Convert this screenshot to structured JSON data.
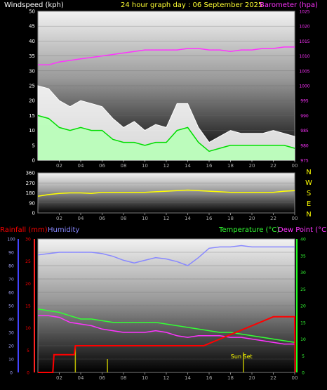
{
  "header": {
    "title": "24 hour graph day : 06 September 2025",
    "wind_label": "Windspeed (kph)",
    "baro_label": "Barometer (hpa)",
    "rain_label": "Rainfall (mm)",
    "humidity_label": "Humidity",
    "temp_label": "Temperature (°C)",
    "dew_label": "Dew Point (°C)",
    "sunset_label": "Sun Set"
  },
  "colors": {
    "wind_gust": "#ffffff",
    "wind_avg": "#b8ffb8",
    "wind_avg_line": "#00dd00",
    "barometer": "#ff33ff",
    "direction": "#ffff00",
    "rain": "#ff0000",
    "humidity": "#8888ff",
    "temperature": "#33ff33",
    "dewpoint": "#ff33ff",
    "solar": "#bbbb00",
    "bg": "#000000",
    "plot_top": "#f2f2f2",
    "plot_bottom": "#000000"
  },
  "chart_data": [
    {
      "id": "wind_baro",
      "type": "line",
      "x_ticks": [
        "02",
        "04",
        "06",
        "08",
        "10",
        "12",
        "14",
        "16",
        "18",
        "20",
        "22",
        "00"
      ],
      "y_left_ticks": [
        0,
        5,
        10,
        15,
        20,
        25,
        30,
        35,
        40,
        45,
        50
      ],
      "y_left_lim": [
        0,
        50
      ],
      "y_right_ticks": [
        975,
        980,
        985,
        990,
        995,
        1000,
        1005,
        1010,
        1015,
        1020,
        1025
      ],
      "y_right_lim": [
        975,
        1025
      ],
      "series": [
        {
          "key": "gust",
          "hours": [
            0,
            1,
            2,
            3,
            4,
            5,
            6,
            7,
            8,
            9,
            10,
            11,
            12,
            13,
            14,
            15,
            16,
            17,
            18,
            19,
            20,
            21,
            22,
            23,
            24
          ],
          "values": [
            25,
            24,
            20,
            18,
            20,
            19,
            18,
            14,
            11,
            13,
            10,
            12,
            11,
            19,
            19,
            11,
            6,
            8,
            10,
            9,
            9,
            9,
            10,
            9,
            8
          ]
        },
        {
          "key": "avg",
          "hours": [
            0,
            1,
            2,
            3,
            4,
            5,
            6,
            7,
            8,
            9,
            10,
            11,
            12,
            13,
            14,
            15,
            16,
            17,
            18,
            19,
            20,
            21,
            22,
            23,
            24
          ],
          "values": [
            15,
            14,
            11,
            10,
            11,
            10,
            10,
            7,
            6,
            6,
            5,
            6,
            6,
            10,
            11,
            6,
            3,
            4,
            5,
            5,
            5,
            5,
            5,
            5,
            4
          ]
        },
        {
          "key": "barometer",
          "hours": [
            0,
            1,
            2,
            3,
            4,
            5,
            6,
            7,
            8,
            9,
            10,
            11,
            12,
            13,
            14,
            15,
            16,
            17,
            18,
            19,
            20,
            21,
            22,
            23,
            24
          ],
          "values": [
            1007,
            1007,
            1008,
            1008.5,
            1009,
            1009.5,
            1010,
            1010.5,
            1011,
            1011.5,
            1012,
            1012,
            1012,
            1012,
            1012.5,
            1012.5,
            1012,
            1012,
            1011.5,
            1012,
            1012,
            1012.5,
            1012.5,
            1013,
            1013
          ]
        }
      ]
    },
    {
      "id": "direction",
      "type": "line",
      "x_ticks": [
        "02",
        "04",
        "06",
        "08",
        "10",
        "12",
        "14",
        "16",
        "18",
        "20",
        "22",
        "00"
      ],
      "y_ticks": [
        0,
        90,
        180,
        270,
        360
      ],
      "y_lim": [
        0,
        360
      ],
      "compass_labels": [
        "N",
        "W",
        "S",
        "E",
        "N"
      ],
      "series": [
        {
          "key": "direction",
          "hours": [
            0,
            1,
            2,
            3,
            4,
            5,
            6,
            7,
            8,
            9,
            10,
            11,
            12,
            13,
            14,
            15,
            16,
            17,
            18,
            19,
            20,
            21,
            22,
            23,
            24
          ],
          "values": [
            150,
            165,
            175,
            180,
            180,
            175,
            185,
            185,
            185,
            185,
            185,
            190,
            195,
            200,
            205,
            200,
            195,
            190,
            185,
            185,
            185,
            185,
            185,
            195,
            200
          ]
        }
      ]
    },
    {
      "id": "rain_temp",
      "type": "line",
      "x_ticks": [
        "02",
        "04",
        "06",
        "08",
        "10",
        "12",
        "14",
        "16",
        "18",
        "20",
        "22",
        "00"
      ],
      "humidity_ticks": [
        0,
        10,
        20,
        30,
        40,
        50,
        60,
        70,
        80,
        90,
        100
      ],
      "humidity_lim": [
        0,
        100
      ],
      "rain_ticks": [
        0,
        5,
        10,
        15,
        20,
        25,
        30
      ],
      "rain_lim": [
        0,
        30
      ],
      "temp_ticks": [
        0,
        5,
        10,
        15,
        20,
        25,
        30,
        35,
        40
      ],
      "temp_lim": [
        0,
        40
      ],
      "series": [
        {
          "key": "humidity",
          "hours": [
            0,
            1,
            2,
            3,
            4,
            5,
            6,
            7,
            8,
            9,
            10,
            11,
            12,
            13,
            14,
            15,
            16,
            17,
            18,
            19,
            20,
            21,
            22,
            23,
            24
          ],
          "values": [
            88,
            89,
            90,
            90,
            90,
            90,
            89,
            87,
            84,
            82,
            84,
            86,
            85,
            83,
            80,
            86,
            93,
            94,
            94,
            95,
            94,
            94,
            94,
            94,
            94
          ]
        },
        {
          "key": "temperature",
          "hours": [
            0,
            1,
            2,
            3,
            4,
            5,
            6,
            7,
            8,
            9,
            10,
            11,
            12,
            13,
            14,
            15,
            16,
            17,
            18,
            19,
            20,
            21,
            22,
            23,
            24
          ],
          "values": [
            19,
            18.5,
            18,
            17,
            16,
            16,
            15.5,
            15,
            15,
            15,
            15,
            15,
            14.5,
            14,
            13.5,
            13,
            12.5,
            12,
            12,
            11.5,
            11,
            10.5,
            10,
            9.5,
            9
          ]
        },
        {
          "key": "dewpoint",
          "hours": [
            0,
            1,
            2,
            3,
            4,
            5,
            6,
            7,
            8,
            9,
            10,
            11,
            12,
            13,
            14,
            15,
            16,
            17,
            18,
            19,
            20,
            21,
            22,
            23,
            24
          ],
          "values": [
            17,
            17,
            16.5,
            15,
            14.5,
            14,
            13,
            12.5,
            12,
            12,
            12,
            12.5,
            12,
            11,
            10.5,
            11,
            11,
            11,
            10.5,
            10.5,
            10,
            9.5,
            9,
            8.5,
            8.5
          ]
        },
        {
          "key": "rainfall",
          "hours": [
            0,
            1.4,
            1.5,
            3.4,
            3.5,
            15.5,
            16,
            17,
            18,
            19,
            20,
            21,
            22,
            24,
            24.05
          ],
          "values": [
            0,
            0,
            4,
            4,
            6,
            6,
            6.5,
            7.5,
            8.5,
            9.5,
            10.5,
            11.5,
            12.5,
            12.5,
            0
          ]
        },
        {
          "key": "solar",
          "hours": [
            3.5,
            6.5,
            19.2
          ],
          "values": [
            8,
            4,
            6
          ]
        }
      ],
      "sunset_hour": 19
    }
  ]
}
